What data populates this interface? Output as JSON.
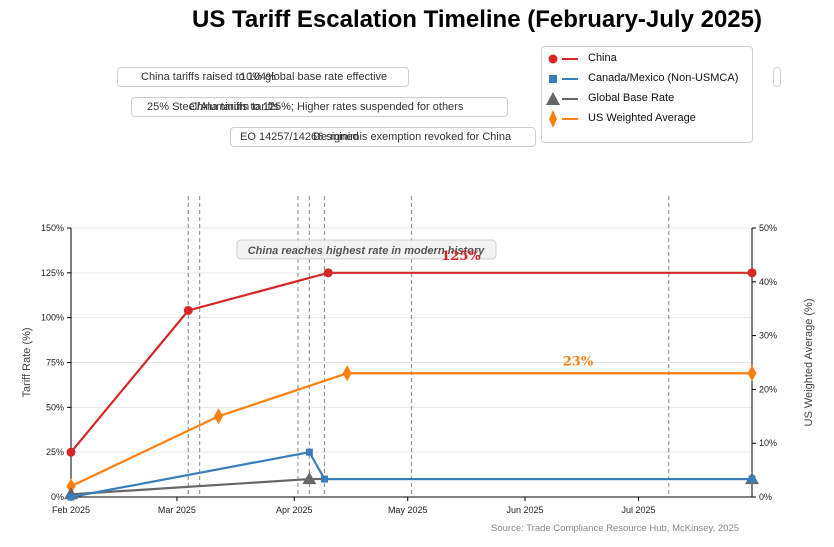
{
  "chart_data": {
    "type": "line",
    "title": "US Tariff Escalation Timeline (February-July 2025)",
    "ylabel": "Tariff Rate (%)",
    "y2label": "US Weighted Average (%)",
    "ylim": [
      0,
      150
    ],
    "y2lim": [
      0,
      50
    ],
    "xlim": [
      "2025-02-01",
      "2025-07-31"
    ],
    "x_ticks": [
      "Feb 2025",
      "Mar 2025",
      "Apr 2025",
      "May 2025",
      "Jun 2025",
      "Jul 2025"
    ],
    "y_ticks": [
      "0%",
      "25%",
      "50%",
      "75%",
      "100%",
      "125%",
      "150%"
    ],
    "y2_ticks": [
      "0%",
      "10%",
      "20%",
      "30%",
      "40%",
      "50%"
    ],
    "grid": true,
    "legend_position": "top-right",
    "series": [
      {
        "name": "China",
        "axis": "left",
        "color": "#d62728",
        "marker": "circle",
        "points": [
          [
            "2025-02-01",
            25
          ],
          [
            "2025-03-04",
            104
          ],
          [
            "2025-04-10",
            125
          ],
          [
            "2025-07-31",
            125
          ]
        ]
      },
      {
        "name": "Canada/Mexico (Non-USMCA)",
        "axis": "left",
        "color": "#3a7dbd",
        "marker": "square",
        "points": [
          [
            "2025-02-01",
            0
          ],
          [
            "2025-04-05",
            25
          ],
          [
            "2025-04-09",
            10
          ],
          [
            "2025-07-31",
            10
          ]
        ]
      },
      {
        "name": "Global Base Rate",
        "axis": "left",
        "color": "#666666",
        "marker": "triangle",
        "points": [
          [
            "2025-02-01",
            1.5
          ],
          [
            "2025-04-05",
            10
          ],
          [
            "2025-07-31",
            10
          ]
        ]
      },
      {
        "name": "US Weighted Average",
        "axis": "right",
        "color": "#ff7f0e",
        "marker": "diamond",
        "points": [
          [
            "2025-02-01",
            2
          ],
          [
            "2025-03-12",
            15
          ],
          [
            "2025-04-15",
            23
          ],
          [
            "2025-07-31",
            23
          ]
        ]
      }
    ],
    "event_dates": [
      "2025-03-04",
      "2025-03-07",
      "2025-04-02",
      "2025-04-05",
      "2025-04-09",
      "2025-05-02",
      "2025-07-09"
    ],
    "data_labels": [
      {
        "text": "125%",
        "color": "#d62728"
      },
      {
        "text": "23%",
        "color": "#ff7f0e"
      }
    ],
    "annotations": [
      "China tariffs raised to 104%",
      "10% global base rate effective",
      "25% Steel/Aluminum tariffs",
      "China tariffs to 125%; Higher rates suspended for others",
      "EO 14257/14266 signed",
      "De minimis exemption revoked for China",
      "China reaches highest rate in modern history"
    ],
    "source": "Source: Trade Compliance Resource Hub, McKinsey, 2025"
  }
}
